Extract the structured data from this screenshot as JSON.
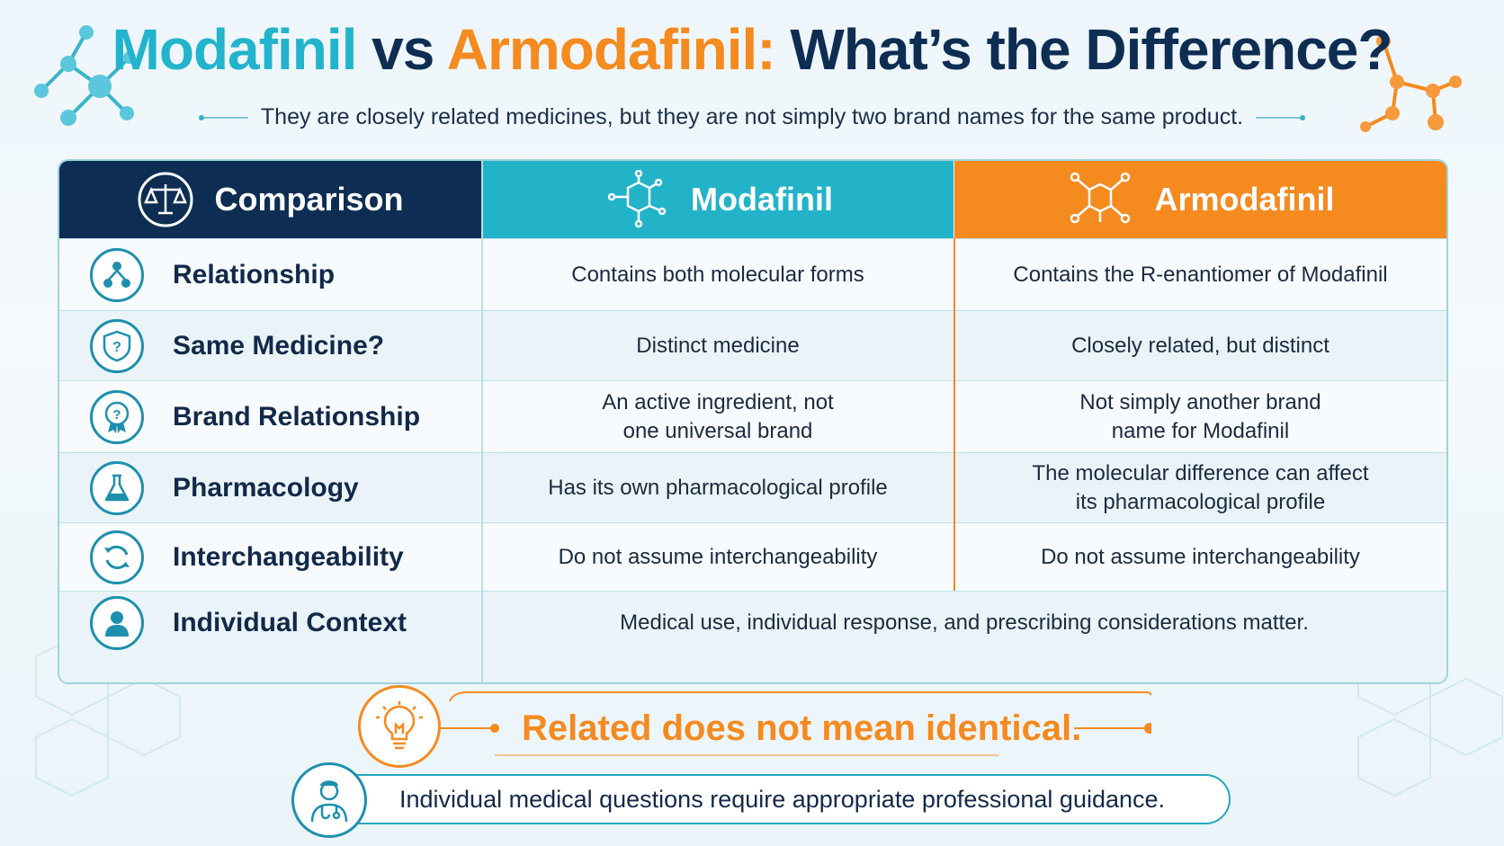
{
  "title": {
    "part1": "Modafinil",
    "part2": " vs ",
    "part3": "Armodafinil:",
    "part4": " What’s the Difference?"
  },
  "subtitle": "They are closely related medicines, but they are not simply two brand names for the same product.",
  "headers": {
    "comparison": "Comparison",
    "modafinil": "Modafinil",
    "armodafinil": "Armodafinil"
  },
  "rows": [
    {
      "label": "Relationship",
      "icon": "hierarchy-icon",
      "modafinil": "Contains both molecular forms",
      "armodafinil": "Contains the R-enantiomer of Modafinil"
    },
    {
      "label": "Same Medicine?",
      "icon": "shield-question-icon",
      "modafinil": "Distinct medicine",
      "armodafinil": "Closely related, but distinct"
    },
    {
      "label": "Brand Relationship",
      "icon": "badge-question-icon",
      "modafinil": "An active ingredient, not\none universal brand",
      "armodafinil": "Not simply another brand\nname for Modafinil"
    },
    {
      "label": "Pharmacology",
      "icon": "flask-icon",
      "modafinil": "Has its own pharmacological profile",
      "armodafinil": "The molecular difference can affect\nits pharmacological profile"
    },
    {
      "label": "Interchangeability",
      "icon": "cycle-arrows-icon",
      "modafinil": "Do not assume interchangeability",
      "armodafinil": "Do not assume interchangeability"
    },
    {
      "label": "Individual Context",
      "icon": "person-icon",
      "combined": "Medical use, individual response, and prescribing considerations matter."
    }
  ],
  "tagline": "Related does not mean identical.",
  "guidance": "Individual medical questions require appropriate professional guidance.",
  "colors": {
    "navy": "#0e2d52",
    "teal": "#23b3c9",
    "orange": "#f58a1f"
  }
}
